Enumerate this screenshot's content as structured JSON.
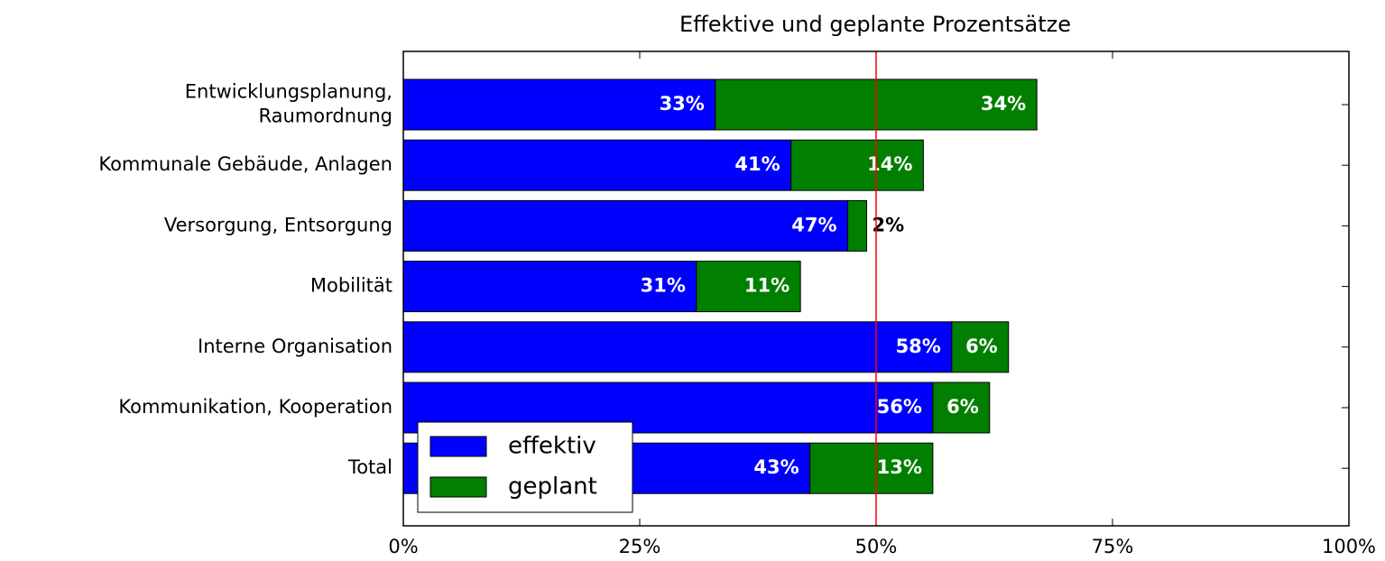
{
  "chart_data": {
    "type": "barh_stacked",
    "title": "Effektive und geplante Prozentsätze",
    "categories": [
      "Entwicklungsplanung,\nRaumordnung",
      "Kommunale Gebäude, Anlagen",
      "Versorgung, Entsorgung",
      "Mobilität",
      "Interne Organisation",
      "Kommunikation, Kooperation",
      "Total"
    ],
    "series": [
      {
        "name": "effektiv",
        "color": "#0000ff",
        "values": [
          33,
          41,
          47,
          31,
          58,
          56,
          43
        ],
        "value_labels": [
          "33%",
          "41%",
          "47%",
          "31%",
          "58%",
          "56%",
          "43%"
        ]
      },
      {
        "name": "geplant",
        "color": "#007f00",
        "values": [
          34,
          14,
          2,
          11,
          6,
          6,
          13
        ],
        "value_labels": [
          "34%",
          "14%",
          "2%",
          "11%",
          "6%",
          "6%",
          "13%"
        ]
      }
    ],
    "xlim": [
      0,
      100
    ],
    "xticks": [
      {
        "value": 0,
        "label": "0%"
      },
      {
        "value": 25,
        "label": "25%"
      },
      {
        "value": 50,
        "label": "50%"
      },
      {
        "value": 75,
        "label": "75%"
      },
      {
        "value": 100,
        "label": "100%"
      }
    ],
    "reference_line": {
      "value": 50,
      "color": "#ff0000"
    },
    "legend": "lower left"
  }
}
